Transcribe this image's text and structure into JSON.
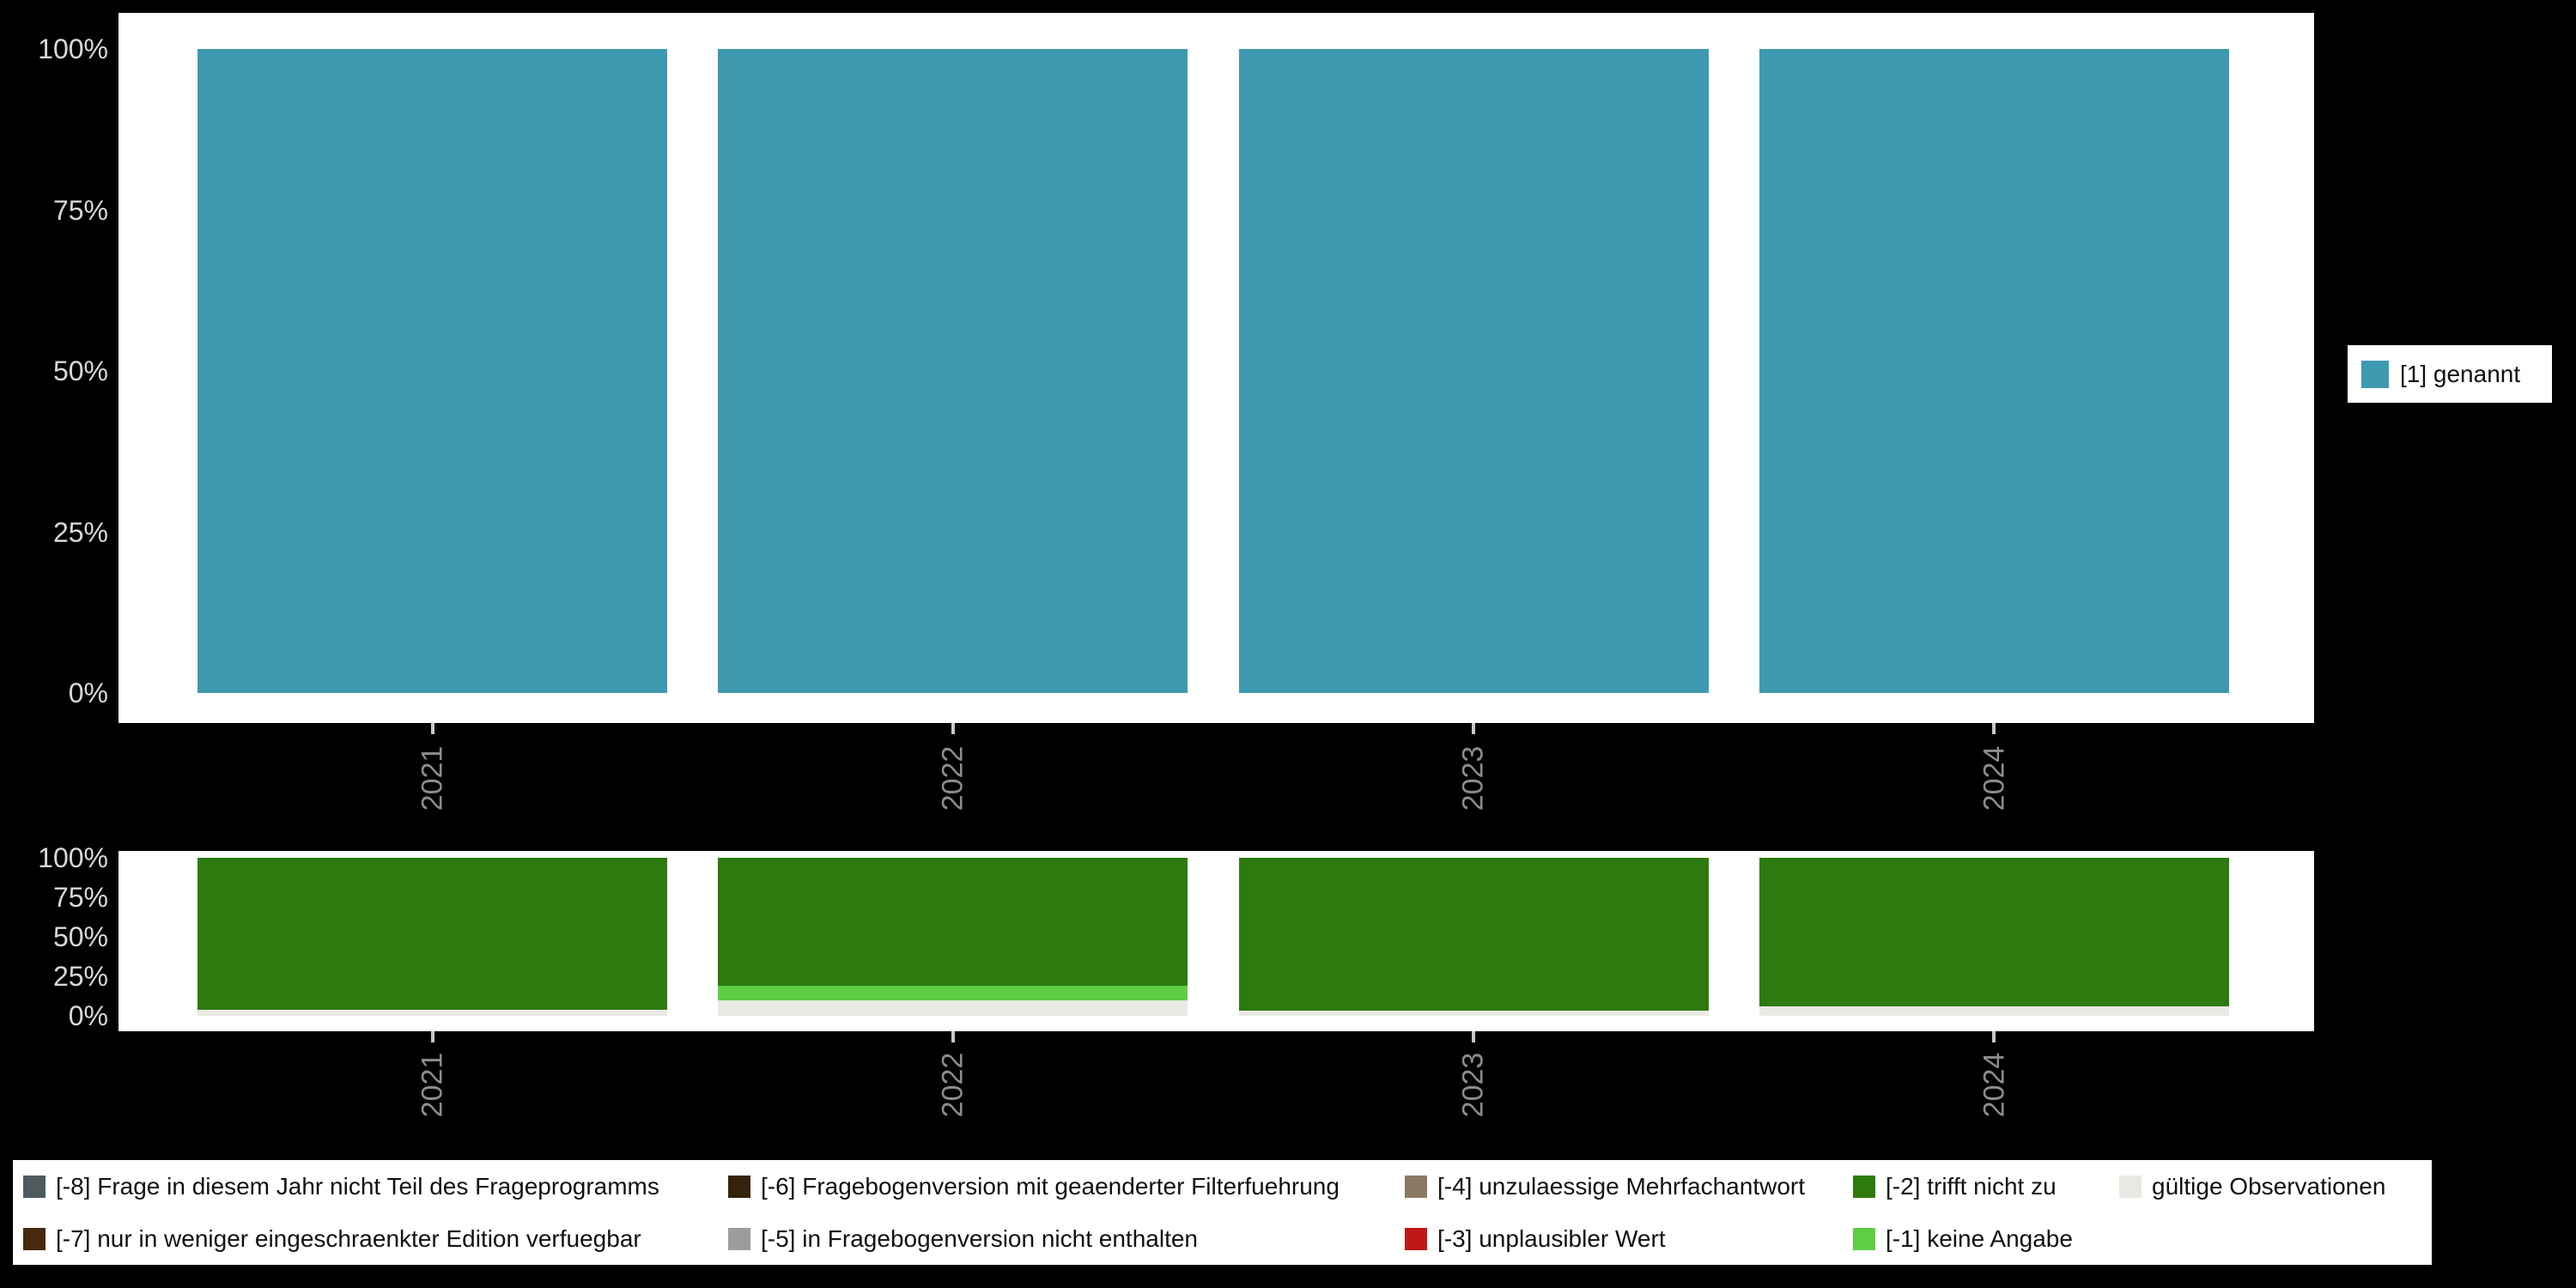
{
  "page": {
    "background": "#000000",
    "panel_color": "#ffffff",
    "axis_text_color_y": "#d8d8d8",
    "axis_text_color_x": "#8c8c8c"
  },
  "top_legend": {
    "label": "[1] genannt",
    "color": "#3e9ab0"
  },
  "bottom_legend": {
    "items": [
      {
        "label": "[-8] Frage in diesem Jahr nicht Teil des Frageprogramms",
        "color": "#4d5a5e"
      },
      {
        "label": "[-6] Fragebogenversion mit geaenderter Filterfuehrung",
        "color": "#33230b"
      },
      {
        "label": "[-4] unzulaessige Mehrfachantwort",
        "color": "#8a7a63"
      },
      {
        "label": "[-2] trifft nicht zu",
        "color": "#2d7a0e"
      },
      {
        "label": "gültige Observationen",
        "color": "#e9e9e4"
      },
      {
        "label": "[-7] nur in weniger eingeschraenkter Edition verfuegbar",
        "color": "#47290d"
      },
      {
        "label": "[-5] in Fragebogenversion nicht enthalten",
        "color": "#9c9c9c"
      },
      {
        "label": "[-3] unplausibler Wert",
        "color": "#c11717"
      },
      {
        "label": "[-1] keine Angabe",
        "color": "#5fce44"
      }
    ]
  },
  "chart_data": [
    {
      "name": "value-distribution",
      "type": "bar",
      "stacked": true,
      "categories": [
        "2021",
        "2022",
        "2023",
        "2024"
      ],
      "series": [
        {
          "name": "[1] genannt",
          "color": "#3e9ab0",
          "values": [
            100,
            100,
            100,
            100
          ]
        }
      ],
      "title": "",
      "xlabel": "",
      "ylabel": "",
      "ylim": [
        0,
        100
      ],
      "yticks": [
        "0%",
        "25%",
        "50%",
        "75%",
        "100%"
      ],
      "grid": false,
      "legend_position": "right"
    },
    {
      "name": "missing-values-distribution",
      "type": "bar",
      "stacked": true,
      "categories": [
        "2021",
        "2022",
        "2023",
        "2024"
      ],
      "series": [
        {
          "name": "[-2] trifft nicht zu",
          "color": "#2d7a0e",
          "values": [
            96,
            81,
            97,
            94
          ]
        },
        {
          "name": "[-1] keine Angabe",
          "color": "#5fce44",
          "values": [
            0,
            9,
            0,
            0
          ]
        },
        {
          "name": "gültige Observationen",
          "color": "#e9e9e4",
          "values": [
            4,
            10,
            3,
            6
          ]
        }
      ],
      "title": "",
      "xlabel": "",
      "ylabel": "",
      "ylim": [
        0,
        100
      ],
      "yticks": [
        "0%",
        "25%",
        "50%",
        "75%",
        "100%"
      ],
      "grid": false,
      "legend_position": "bottom"
    }
  ]
}
